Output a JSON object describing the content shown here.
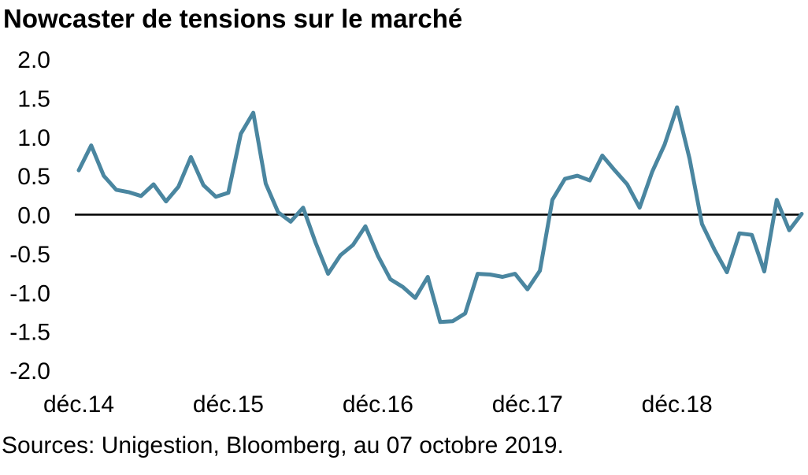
{
  "title": "Nowcaster de tensions sur le marché",
  "source": "Sources: Unigestion, Bloomberg, au 07 octobre 2019.",
  "colors": {
    "series": "#4a86a0",
    "zero_line": "#000000",
    "text": "#000000"
  },
  "chart_data": {
    "type": "line",
    "title": "Nowcaster de tensions sur le marché",
    "xlabel": "",
    "ylabel": "",
    "ylim": [
      -2.0,
      2.0
    ],
    "grid": false,
    "legend": "none",
    "ytick_labels": [
      "2.0",
      "1.5",
      "1.0",
      "0.5",
      "0.0",
      "-0.5",
      "-1.0",
      "-1.5",
      "-2.0"
    ],
    "ytick_values": [
      2.0,
      1.5,
      1.0,
      0.5,
      0.0,
      -0.5,
      -1.0,
      -1.5,
      -2.0
    ],
    "xtick_labels": [
      "déc.14",
      "déc.15",
      "déc.16",
      "déc.17",
      "déc.18"
    ],
    "xtick_indices": [
      0,
      12,
      24,
      36,
      48
    ],
    "series": [
      {
        "values": [
          0.57,
          0.89,
          0.5,
          0.32,
          0.29,
          0.24,
          0.39,
          0.17,
          0.36,
          0.74,
          0.38,
          0.23,
          0.28,
          1.04,
          1.31,
          0.4,
          0.03,
          -0.09,
          0.09,
          -0.36,
          -0.76,
          -0.52,
          -0.39,
          -0.15,
          -0.53,
          -0.83,
          -0.93,
          -1.07,
          -0.8,
          -1.38,
          -1.37,
          -1.27,
          -0.76,
          -0.77,
          -0.8,
          -0.76,
          -0.96,
          -0.72,
          0.19,
          0.46,
          0.5,
          0.44,
          0.76,
          0.57,
          0.39,
          0.09,
          0.55,
          0.9,
          1.38,
          0.72,
          -0.12,
          -0.45,
          -0.74,
          -0.24,
          -0.26,
          -0.73,
          0.19,
          -0.2,
          0.01
        ]
      }
    ]
  }
}
